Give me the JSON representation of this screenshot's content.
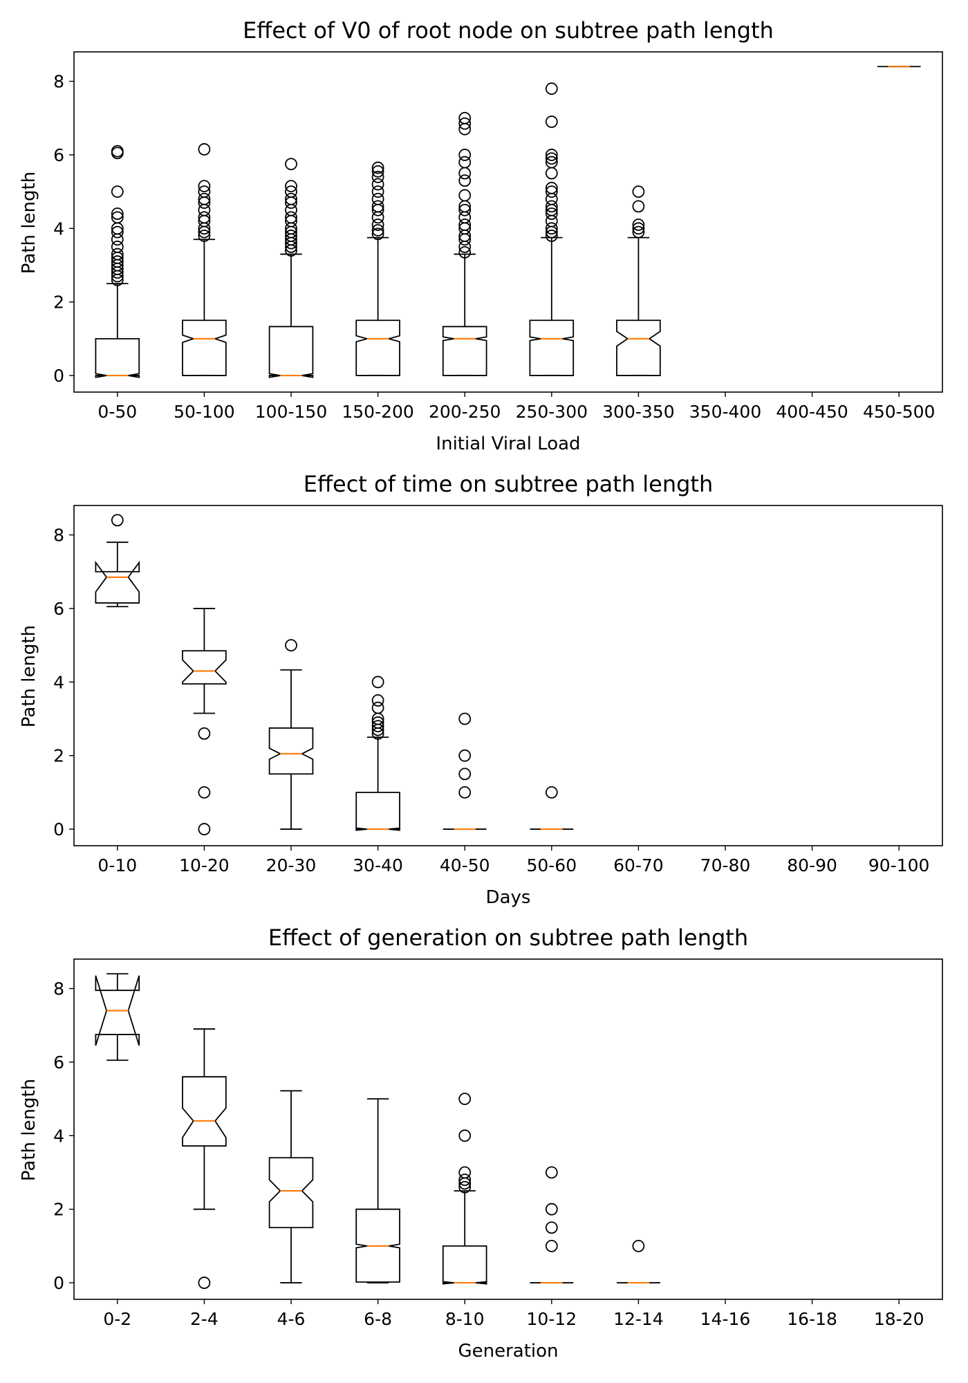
{
  "chart_data": [
    {
      "type": "boxplot",
      "notched": true,
      "title": "Effect of V0 of root node on subtree path length",
      "xlabel": "Initial Viral Load",
      "ylabel": "Path length",
      "ylim": [
        -0.45,
        8.8
      ],
      "yticks": [
        0,
        2,
        4,
        6,
        8
      ],
      "categories": [
        "0-50",
        "50-100",
        "100-150",
        "150-200",
        "200-250",
        "250-300",
        "300-350",
        "350-400",
        "400-450",
        "450-500"
      ],
      "boxes": [
        {
          "q1": 0,
          "median": 0,
          "q3": 1,
          "whisker_low": 0,
          "whisker_high": 2.5,
          "notch_low": -0.05,
          "notch_high": 0.05,
          "outliers": [
            2.6,
            2.7,
            2.8,
            2.9,
            3.0,
            3.1,
            3.2,
            3.3,
            3.5,
            3.7,
            3.9,
            4.0,
            4.3,
            4.4,
            5.0,
            6.05,
            6.1
          ]
        },
        {
          "q1": 0,
          "median": 1,
          "q3": 1.5,
          "whisker_low": 0,
          "whisker_high": 3.7,
          "notch_low": 0.9,
          "notch_high": 1.1,
          "outliers": [
            3.8,
            3.9,
            4.0,
            4.2,
            4.3,
            4.5,
            4.7,
            4.8,
            5.0,
            5.15,
            6.15
          ]
        },
        {
          "q1": 0,
          "median": 0,
          "q3": 1.33,
          "whisker_low": 0,
          "whisker_high": 3.3,
          "notch_low": -0.05,
          "notch_high": 0.05,
          "outliers": [
            3.4,
            3.5,
            3.6,
            3.7,
            3.8,
            3.9,
            4.0,
            4.2,
            4.3,
            4.5,
            4.7,
            4.8,
            5.0,
            5.15,
            5.75
          ]
        },
        {
          "q1": 0,
          "median": 1,
          "q3": 1.5,
          "whisker_low": 0,
          "whisker_high": 3.75,
          "notch_low": 0.92,
          "notch_high": 1.08,
          "outliers": [
            3.85,
            3.95,
            4.1,
            4.3,
            4.5,
            4.6,
            4.8,
            5.0,
            5.2,
            5.4,
            5.55,
            5.65
          ]
        },
        {
          "q1": 0,
          "median": 1,
          "q3": 1.33,
          "whisker_low": 0,
          "whisker_high": 3.3,
          "notch_low": 0.95,
          "notch_high": 1.05,
          "outliers": [
            3.35,
            3.5,
            3.7,
            3.8,
            4.0,
            4.1,
            4.3,
            4.5,
            4.6,
            4.9,
            5.3,
            5.5,
            5.8,
            6.0,
            6.7,
            6.85,
            7.0
          ]
        },
        {
          "q1": 0,
          "median": 1,
          "q3": 1.5,
          "whisker_low": 0,
          "whisker_high": 3.75,
          "notch_low": 0.95,
          "notch_high": 1.05,
          "outliers": [
            3.8,
            3.9,
            4.0,
            4.2,
            4.4,
            4.5,
            4.6,
            4.8,
            5.0,
            5.1,
            5.5,
            5.8,
            5.9,
            6.0,
            6.9,
            7.8
          ]
        },
        {
          "q1": 0,
          "median": 1,
          "q3": 1.5,
          "whisker_low": 0,
          "whisker_high": 3.75,
          "notch_low": 0.8,
          "notch_high": 1.2,
          "outliers": [
            3.9,
            4.0,
            4.1,
            4.6,
            5.0
          ]
        },
        null,
        null,
        {
          "q1": 8.4,
          "median": 8.4,
          "q3": 8.4,
          "whisker_low": 8.4,
          "whisker_high": 8.4,
          "notch_low": 8.4,
          "notch_high": 8.4,
          "outliers": []
        }
      ]
    },
    {
      "type": "boxplot",
      "notched": true,
      "title": "Effect of time on subtree path length",
      "xlabel": "Days",
      "ylabel": "Path length",
      "ylim": [
        -0.45,
        8.8
      ],
      "yticks": [
        0,
        2,
        4,
        6,
        8
      ],
      "categories": [
        "0-10",
        "10-20",
        "20-30",
        "30-40",
        "40-50",
        "50-60",
        "60-70",
        "70-80",
        "80-90",
        "90-100"
      ],
      "boxes": [
        {
          "q1": 6.15,
          "median": 6.85,
          "q3": 7.0,
          "whisker_low": 6.05,
          "whisker_high": 7.8,
          "notch_low": 6.45,
          "notch_high": 7.25,
          "outliers": [
            8.4
          ]
        },
        {
          "q1": 3.95,
          "median": 4.3,
          "q3": 4.85,
          "whisker_low": 3.15,
          "whisker_high": 6.0,
          "notch_low": 4.0,
          "notch_high": 4.6,
          "outliers": [
            2.6,
            1.0,
            0.0
          ]
        },
        {
          "q1": 1.5,
          "median": 2.05,
          "q3": 2.75,
          "whisker_low": 0,
          "whisker_high": 4.33,
          "notch_low": 1.9,
          "notch_high": 2.2,
          "outliers": [
            5.0
          ]
        },
        {
          "q1": 0,
          "median": 0,
          "q3": 1.0,
          "whisker_low": 0,
          "whisker_high": 2.5,
          "notch_low": -0.03,
          "notch_high": 0.03,
          "outliers": [
            2.6,
            2.7,
            2.8,
            2.9,
            3.0,
            3.3,
            3.5,
            4.0
          ]
        },
        {
          "q1": 0,
          "median": 0,
          "q3": 0,
          "whisker_low": 0,
          "whisker_high": 0,
          "notch_low": 0,
          "notch_high": 0,
          "outliers": [
            1.0,
            1.5,
            2.0,
            3.0
          ]
        },
        {
          "q1": 0,
          "median": 0,
          "q3": 0,
          "whisker_low": 0,
          "whisker_high": 0,
          "notch_low": 0,
          "notch_high": 0,
          "outliers": [
            1.0
          ]
        },
        null,
        null,
        null,
        null
      ]
    },
    {
      "type": "boxplot",
      "notched": true,
      "title": "Effect of generation on subtree path length",
      "xlabel": "Generation",
      "ylabel": "Path length",
      "ylim": [
        -0.45,
        8.8
      ],
      "yticks": [
        0,
        2,
        4,
        6,
        8
      ],
      "categories": [
        "0-2",
        "2-4",
        "4-6",
        "6-8",
        "8-10",
        "10-12",
        "12-14",
        "14-16",
        "16-18",
        "18-20"
      ],
      "boxes": [
        {
          "q1": 6.75,
          "median": 7.4,
          "q3": 7.95,
          "whisker_low": 6.05,
          "whisker_high": 8.4,
          "notch_low": 6.45,
          "notch_high": 8.35,
          "outliers": []
        },
        {
          "q1": 3.72,
          "median": 4.4,
          "q3": 5.6,
          "whisker_low": 2.0,
          "whisker_high": 6.9,
          "notch_low": 3.95,
          "notch_high": 4.75,
          "outliers": [
            0.0
          ]
        },
        {
          "q1": 1.5,
          "median": 2.5,
          "q3": 3.4,
          "whisker_low": 0,
          "whisker_high": 5.22,
          "notch_low": 2.2,
          "notch_high": 2.8,
          "outliers": []
        },
        {
          "q1": 0.02,
          "median": 1.0,
          "q3": 2.0,
          "whisker_low": 0,
          "whisker_high": 5.0,
          "notch_low": 0.95,
          "notch_high": 1.05,
          "outliers": []
        },
        {
          "q1": 0,
          "median": 0,
          "q3": 1.0,
          "whisker_low": 0,
          "whisker_high": 2.5,
          "notch_low": -0.03,
          "notch_high": 0.03,
          "outliers": [
            2.6,
            2.7,
            2.8,
            3.0,
            4.0,
            5.0
          ]
        },
        {
          "q1": 0,
          "median": 0,
          "q3": 0,
          "whisker_low": 0,
          "whisker_high": 0,
          "notch_low": 0,
          "notch_high": 0,
          "outliers": [
            1.0,
            1.5,
            2.0,
            3.0
          ]
        },
        {
          "q1": 0,
          "median": 0,
          "q3": 0,
          "whisker_low": 0,
          "whisker_high": 0,
          "notch_low": 0,
          "notch_high": 0,
          "outliers": [
            1.0
          ]
        },
        null,
        null,
        null
      ]
    }
  ]
}
